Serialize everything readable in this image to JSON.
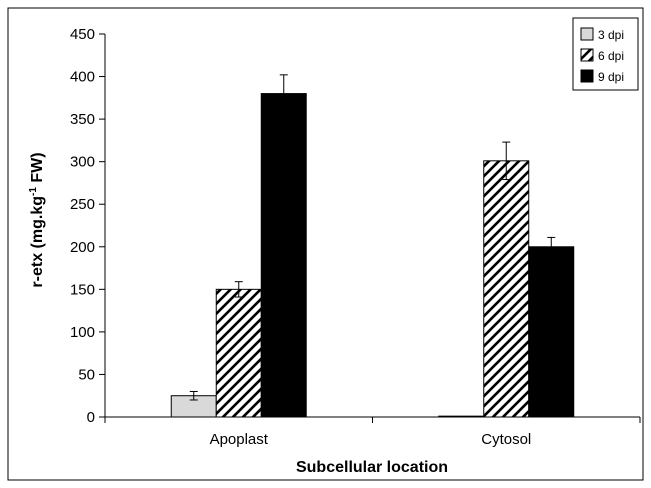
{
  "chart_data": {
    "type": "bar",
    "title": "",
    "xlabel": "Subcellular location",
    "ylabel_main": "r-etx (mg.kg",
    "ylabel_sup": "-1",
    "ylabel_tail": " FW)",
    "ylim": [
      0,
      450
    ],
    "yticks": [
      "0",
      "50",
      "100",
      "150",
      "200",
      "250",
      "300",
      "350",
      "400",
      "450"
    ],
    "categories": [
      "Apoplast",
      "Cytosol"
    ],
    "legend_position": "top-right",
    "series": [
      {
        "name": "3 dpi",
        "pattern": "light-gray",
        "values": [
          25,
          1
        ],
        "errors": [
          5,
          0
        ]
      },
      {
        "name": "6 dpi",
        "pattern": "diagonal-hatch",
        "values": [
          150,
          301
        ],
        "errors": [
          9,
          22
        ]
      },
      {
        "name": "9 dpi",
        "pattern": "solid-black",
        "values": [
          380,
          200
        ],
        "errors": [
          22,
          11
        ]
      }
    ],
    "colors": {
      "light_gray": "#d9d9d9",
      "black": "#000000",
      "border": "#000000"
    }
  }
}
